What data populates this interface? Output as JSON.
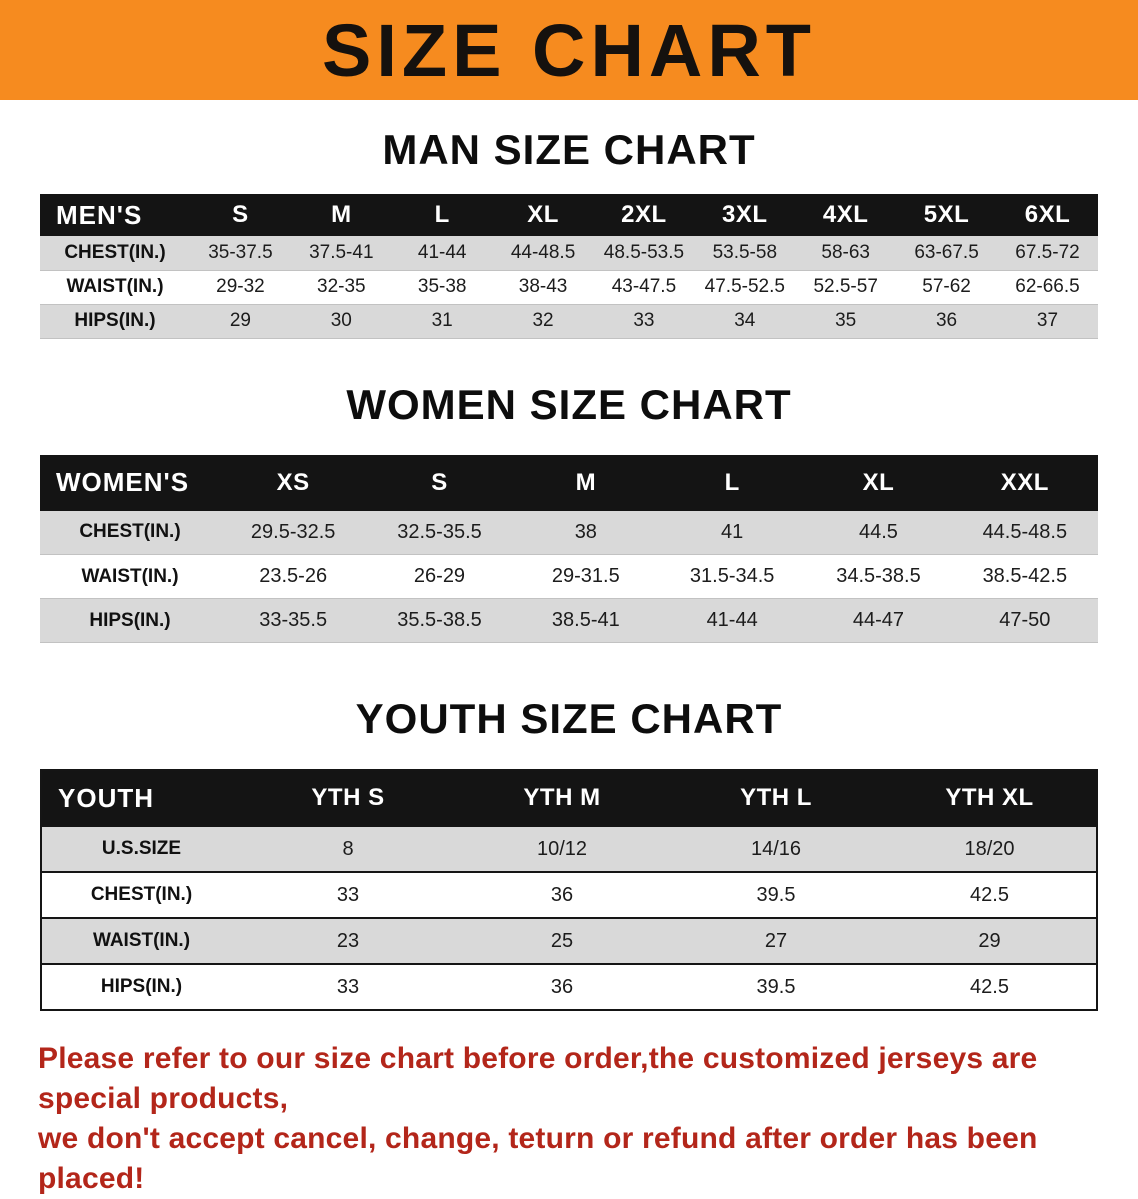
{
  "banner": {
    "title": "SIZE CHART",
    "bg_color": "#f68b1f"
  },
  "sections": {
    "men": {
      "heading": "MAN SIZE CHART",
      "table_title": "MEN'S",
      "columns": [
        "S",
        "M",
        "L",
        "XL",
        "2XL",
        "3XL",
        "4XL",
        "5XL",
        "6XL"
      ],
      "rows": [
        {
          "label": "CHEST(IN.)",
          "values": [
            "35-37.5",
            "37.5-41",
            "41-44",
            "44-48.5",
            "48.5-53.5",
            "53.5-58",
            "58-63",
            "63-67.5",
            "67.5-72"
          ]
        },
        {
          "label": "WAIST(IN.)",
          "values": [
            "29-32",
            "32-35",
            "35-38",
            "38-43",
            "43-47.5",
            "47.5-52.5",
            "52.5-57",
            "57-62",
            "62-66.5"
          ]
        },
        {
          "label": "HIPS(IN.)",
          "values": [
            "29",
            "30",
            "31",
            "32",
            "33",
            "34",
            "35",
            "36",
            "37"
          ]
        }
      ]
    },
    "women": {
      "heading": "WOMEN SIZE CHART",
      "table_title": "WOMEN'S",
      "columns": [
        "XS",
        "S",
        "M",
        "L",
        "XL",
        "XXL"
      ],
      "rows": [
        {
          "label": "CHEST(IN.)",
          "values": [
            "29.5-32.5",
            "32.5-35.5",
            "38",
            "41",
            "44.5",
            "44.5-48.5"
          ]
        },
        {
          "label": "WAIST(IN.)",
          "values": [
            "23.5-26",
            "26-29",
            "29-31.5",
            "31.5-34.5",
            "34.5-38.5",
            "38.5-42.5"
          ]
        },
        {
          "label": "HIPS(IN.)",
          "values": [
            "33-35.5",
            "35.5-38.5",
            "38.5-41",
            "41-44",
            "44-47",
            "47-50"
          ]
        }
      ]
    },
    "youth": {
      "heading": "YOUTH SIZE CHART",
      "table_title": "YOUTH",
      "columns": [
        "YTH S",
        "YTH M",
        "YTH L",
        "YTH XL"
      ],
      "rows": [
        {
          "label": "U.S.SIZE",
          "values": [
            "8",
            "10/12",
            "14/16",
            "18/20"
          ]
        },
        {
          "label": "CHEST(IN.)",
          "values": [
            "33",
            "36",
            "39.5",
            "42.5"
          ]
        },
        {
          "label": "WAIST(IN.)",
          "values": [
            "23",
            "25",
            "27",
            "29"
          ]
        },
        {
          "label": "HIPS(IN.)",
          "values": [
            "33",
            "36",
            "39.5",
            "42.5"
          ]
        }
      ]
    }
  },
  "disclaimer": {
    "line1": "Please refer to our size chart before order,the customized jerseys are special products,",
    "line2": "we don't accept cancel, change, teturn or refund after order has been placed!",
    "color": "#b3261a"
  }
}
